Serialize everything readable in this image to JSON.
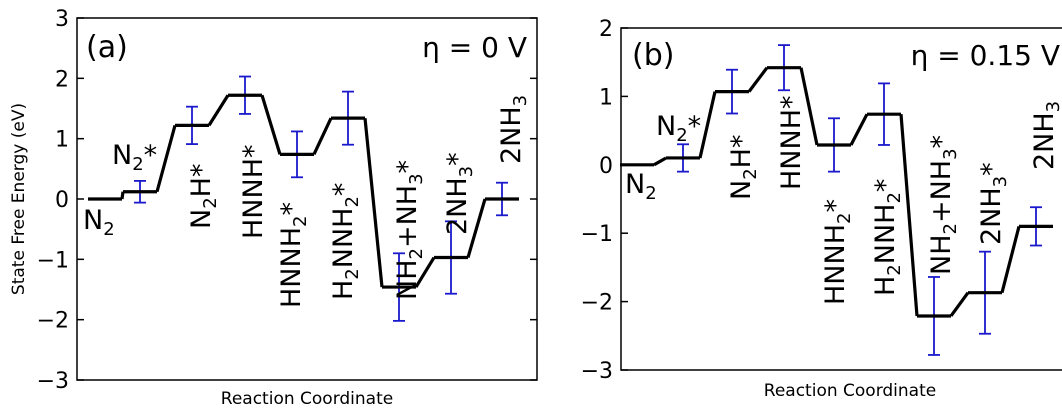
{
  "chart_data": [
    {
      "type": "line",
      "panel_label": "(a)",
      "annotation": "η = 0 V",
      "xlabel": "Reaction Coordinate",
      "ylabel": "State Free Energy (eV)",
      "ylim": [
        -3,
        3
      ],
      "yticks": [
        "3",
        "2",
        "1",
        "0",
        "−1",
        "−2",
        "−3"
      ],
      "grid": false,
      "colors": {
        "line": "#000000",
        "errorbar": "#1a1acc"
      },
      "states": [
        {
          "label": "N₂",
          "value": 0.0,
          "error": null
        },
        {
          "label": "N₂*",
          "value": 0.12,
          "error": 0.18
        },
        {
          "label": "N₂H*",
          "value": 1.22,
          "error": 0.31
        },
        {
          "label": "HNNH*",
          "value": 1.72,
          "error": 0.31
        },
        {
          "label": "HNNH₂*",
          "value": 0.74,
          "error": 0.38
        },
        {
          "label": "H₂NNH₂*",
          "value": 1.34,
          "error": 0.44
        },
        {
          "label": "NH₂+NH₃*",
          "value": -1.46,
          "error": 0.56
        },
        {
          "label": "2NH₃*",
          "value": -0.97,
          "error": 0.6
        },
        {
          "label": "2NH₃",
          "value": 0.0,
          "error": 0.27
        }
      ]
    },
    {
      "type": "line",
      "panel_label": "(b)",
      "annotation": "η = 0.15 V",
      "xlabel": "Reaction Coordinate",
      "ylabel": "",
      "ylim": [
        -3,
        2
      ],
      "yticks": [
        "2",
        "1",
        "0",
        "−1",
        "−2",
        "−3"
      ],
      "grid": false,
      "colors": {
        "line": "#000000",
        "errorbar": "#1a1acc"
      },
      "states": [
        {
          "label": "N₂",
          "value": 0.0,
          "error": null
        },
        {
          "label": "N₂*",
          "value": 0.1,
          "error": 0.2
        },
        {
          "label": "N₂H*",
          "value": 1.07,
          "error": 0.32
        },
        {
          "label": "HNNH*",
          "value": 1.42,
          "error": 0.33
        },
        {
          "label": "HNNH₂*",
          "value": 0.29,
          "error": 0.39
        },
        {
          "label": "H₂NNH₂*",
          "value": 0.74,
          "error": 0.45
        },
        {
          "label": "NH₂+NH₃*",
          "value": -2.21,
          "error": 0.57
        },
        {
          "label": "2NH₃*",
          "value": -1.87,
          "error": 0.6
        },
        {
          "label": "2NH₃",
          "value": -0.9,
          "error": 0.28
        }
      ]
    }
  ]
}
